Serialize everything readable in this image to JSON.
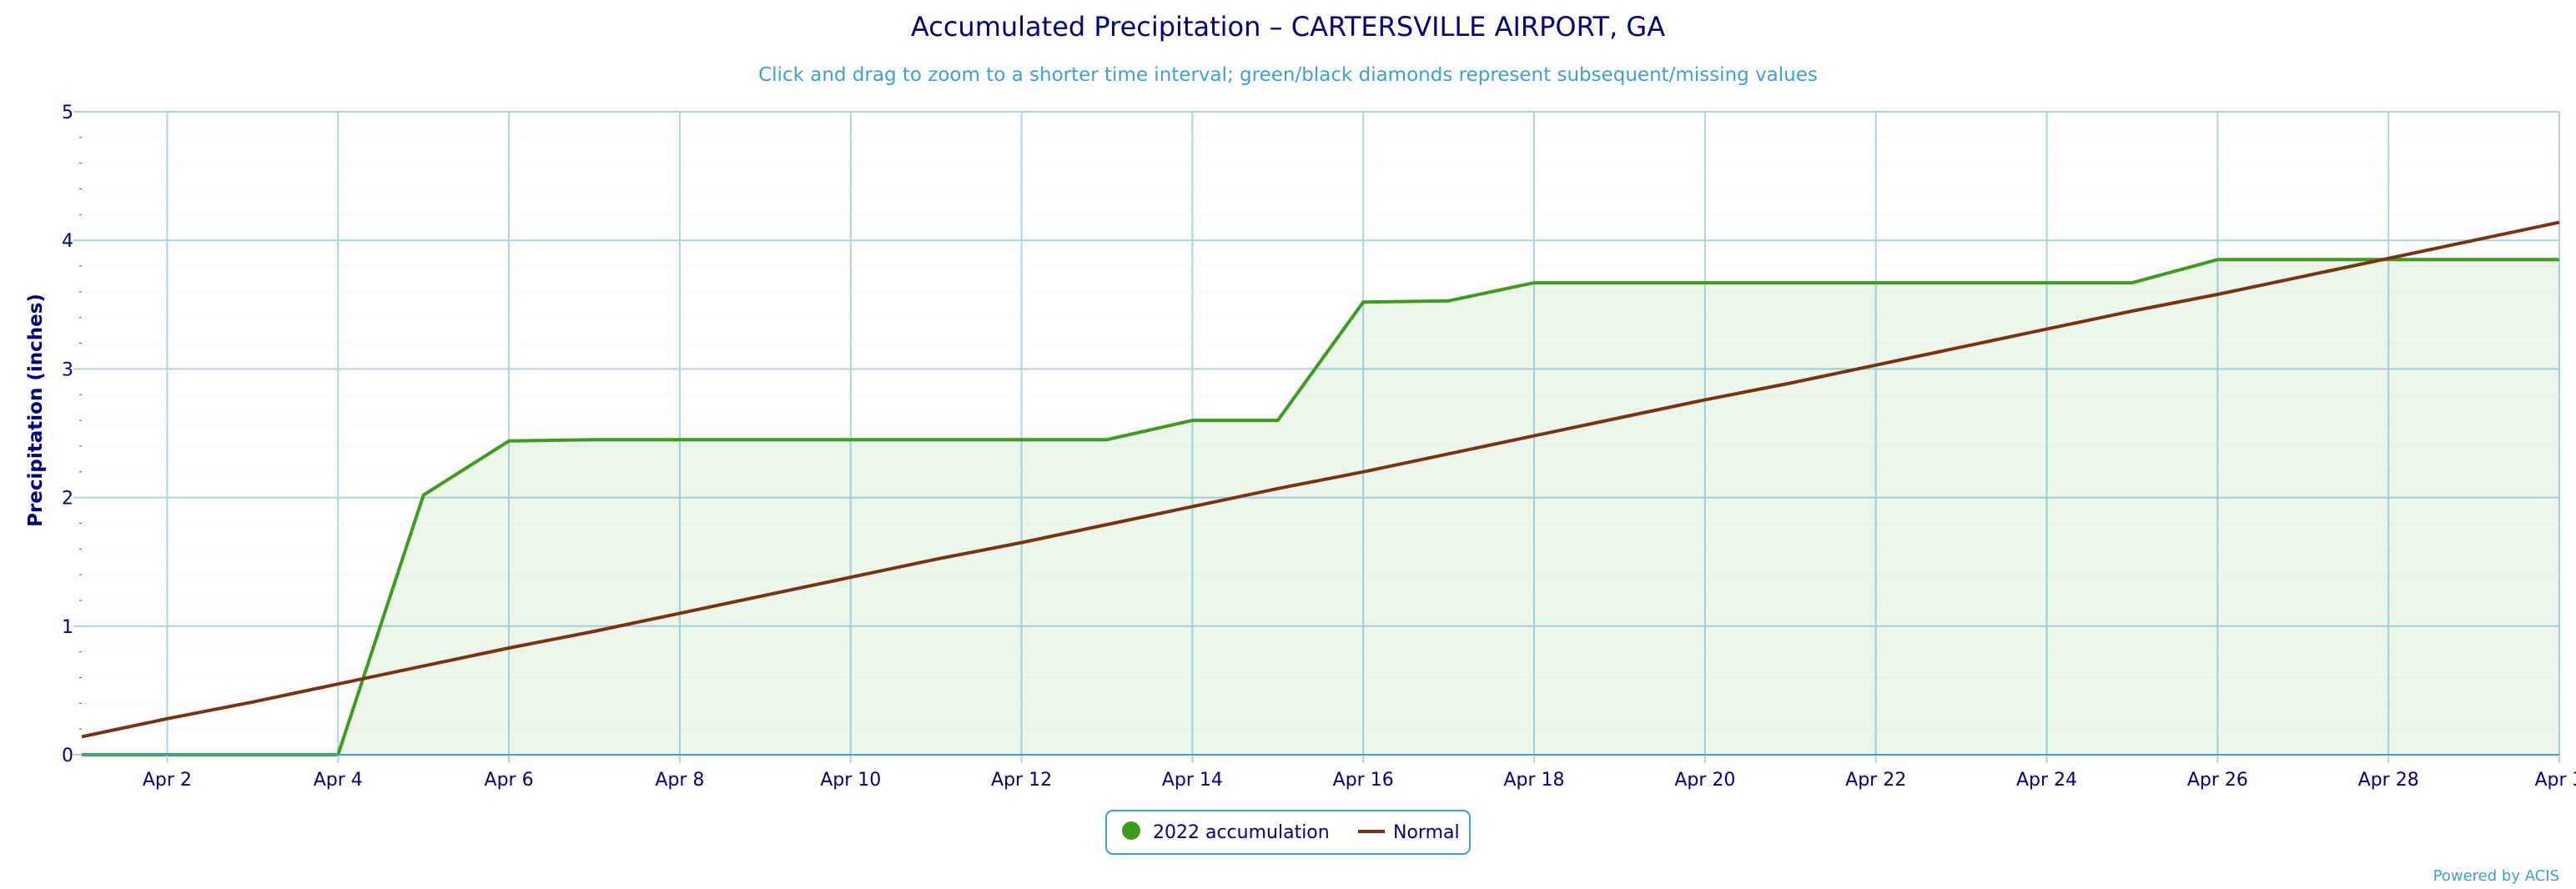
{
  "chart_data": {
    "type": "area",
    "title": "Accumulated Precipitation – CARTERSVILLE AIRPORT, GA",
    "subtitle": "Click and drag to zoom to a shorter time interval; green/black diamonds represent subsequent/missing values",
    "xlabel": "",
    "ylabel": "Precipitation (inches)",
    "xlim": [
      "Apr 1",
      "Apr 30"
    ],
    "ylim": [
      0,
      5
    ],
    "x_tick_labels": [
      "Apr 2",
      "Apr 4",
      "Apr 6",
      "Apr 8",
      "Apr 10",
      "Apr 12",
      "Apr 14",
      "Apr 16",
      "Apr 18",
      "Apr 20",
      "Apr 22",
      "Apr 24",
      "Apr 26",
      "Apr 28",
      "Apr 3"
    ],
    "y_tick_labels": [
      "0",
      "1",
      "2",
      "3",
      "4",
      "5"
    ],
    "x": [
      "Apr 1",
      "Apr 2",
      "Apr 3",
      "Apr 4",
      "Apr 5",
      "Apr 6",
      "Apr 7",
      "Apr 8",
      "Apr 9",
      "Apr 10",
      "Apr 11",
      "Apr 12",
      "Apr 13",
      "Apr 14",
      "Apr 15",
      "Apr 16",
      "Apr 17",
      "Apr 18",
      "Apr 19",
      "Apr 20",
      "Apr 21",
      "Apr 22",
      "Apr 23",
      "Apr 24",
      "Apr 25",
      "Apr 26",
      "Apr 27",
      "Apr 28",
      "Apr 29",
      "Apr 30"
    ],
    "series": [
      {
        "name": "2022 accumulation",
        "color": "#3c9c1c",
        "values": [
          0,
          0,
          0,
          0,
          2.02,
          2.44,
          2.45,
          2.45,
          2.45,
          2.45,
          2.45,
          2.45,
          2.45,
          2.6,
          2.6,
          3.52,
          3.53,
          3.67,
          3.67,
          3.67,
          3.67,
          3.67,
          3.67,
          3.67,
          3.67,
          3.85,
          3.85,
          3.85,
          3.85,
          3.85
        ]
      },
      {
        "name": "Normal",
        "color": "#7a3310",
        "values": [
          0.14,
          0.28,
          0.41,
          0.55,
          0.69,
          0.83,
          0.96,
          1.1,
          1.24,
          1.38,
          1.52,
          1.65,
          1.79,
          1.93,
          2.07,
          2.2,
          2.34,
          2.48,
          2.62,
          2.76,
          2.89,
          3.03,
          3.17,
          3.31,
          3.45,
          3.58,
          3.72,
          3.86,
          4.0,
          4.14
        ]
      }
    ],
    "grid": true,
    "legend_position": "bottom-center",
    "credit": "Powered by ACIS"
  }
}
